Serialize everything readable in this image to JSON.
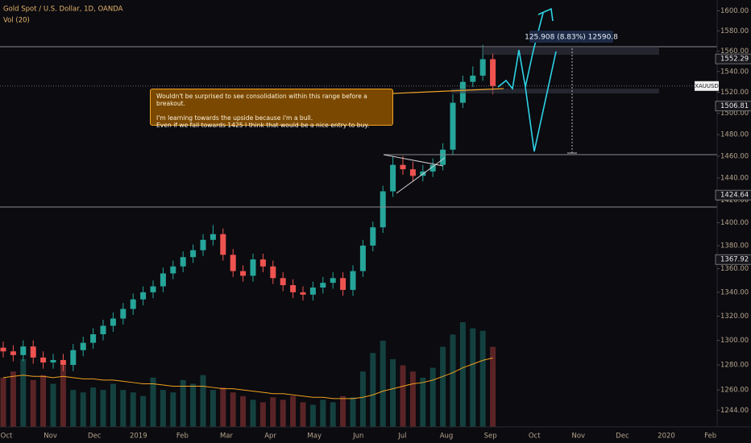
{
  "chart_data": {
    "type": "candlestick",
    "title": "Gold Spot / U.S. Dollar, 1D, OANDA",
    "subtitle": "Vol (20)",
    "scale": "log",
    "up_color": "#26a69a",
    "down_color": "#ef5350",
    "ma_color": "#f0a020",
    "ylim": [
      1231,
      1611
    ],
    "yticks": [
      {
        "value": 1600,
        "label": "1600.00"
      },
      {
        "value": 1580,
        "label": "1580.00"
      },
      {
        "value": 1560,
        "label": "1560.00"
      },
      {
        "value": 1540,
        "label": "1540.00"
      },
      {
        "value": 1520,
        "label": "1520.00"
      },
      {
        "value": 1500,
        "label": "1500.00"
      },
      {
        "value": 1480,
        "label": "1480.00"
      },
      {
        "value": 1460,
        "label": "1460.00"
      },
      {
        "value": 1440,
        "label": "1440.00"
      },
      {
        "value": 1420,
        "label": "1420.00"
      },
      {
        "value": 1400,
        "label": "1400.00"
      },
      {
        "value": 1380,
        "label": "1380.00"
      },
      {
        "value": 1360,
        "label": "1360.00"
      },
      {
        "value": 1340,
        "label": "1340.00"
      },
      {
        "value": 1320,
        "label": "1320.00"
      },
      {
        "value": 1300,
        "label": "1300.00"
      },
      {
        "value": 1280,
        "label": "1280.00"
      },
      {
        "value": 1260,
        "label": "1260.00"
      },
      {
        "value": 1244,
        "label": "1244.00"
      }
    ],
    "x_labels": [
      "Oct",
      "Nov",
      "Dec",
      "2019",
      "Feb",
      "Mar",
      "Apr",
      "May",
      "Jun",
      "Jul",
      "Aug",
      "Sep",
      "Oct",
      "Nov",
      "Dec",
      "2020",
      "Feb"
    ],
    "open": [
      1294,
      1291,
      1288,
      1295,
      1286,
      1282,
      1284,
      1280,
      1292,
      1298,
      1305,
      1312,
      1318,
      1326,
      1334,
      1340,
      1345,
      1356,
      1362,
      1370,
      1376,
      1385,
      1390,
      1372,
      1358,
      1354,
      1368,
      1362,
      1352,
      1346,
      1340,
      1338,
      1344,
      1348,
      1352,
      1342,
      1358,
      1380,
      1396,
      1428,
      1452,
      1448,
      1442,
      1446,
      1452,
      1466,
      1510,
      1530,
      1536,
      1552
    ],
    "high": [
      1299,
      1296,
      1300,
      1300,
      1291,
      1289,
      1289,
      1297,
      1303,
      1310,
      1317,
      1323,
      1331,
      1339,
      1345,
      1350,
      1361,
      1367,
      1375,
      1381,
      1390,
      1398,
      1395,
      1377,
      1363,
      1373,
      1373,
      1367,
      1357,
      1351,
      1345,
      1349,
      1353,
      1357,
      1357,
      1363,
      1385,
      1401,
      1433,
      1460,
      1460,
      1455,
      1452,
      1458,
      1472,
      1518,
      1536,
      1545,
      1566,
      1558
    ],
    "low": [
      1286,
      1283,
      1283,
      1281,
      1277,
      1277,
      1275,
      1275,
      1287,
      1293,
      1300,
      1307,
      1313,
      1321,
      1329,
      1335,
      1340,
      1351,
      1357,
      1365,
      1371,
      1380,
      1367,
      1353,
      1349,
      1349,
      1357,
      1347,
      1341,
      1335,
      1333,
      1333,
      1339,
      1343,
      1337,
      1337,
      1353,
      1375,
      1391,
      1423,
      1443,
      1437,
      1437,
      1441,
      1447,
      1461,
      1505,
      1525,
      1531,
      1518
    ],
    "close": [
      1291,
      1288,
      1295,
      1286,
      1282,
      1284,
      1280,
      1292,
      1298,
      1305,
      1312,
      1318,
      1326,
      1334,
      1340,
      1345,
      1356,
      1362,
      1370,
      1376,
      1385,
      1390,
      1372,
      1358,
      1354,
      1368,
      1362,
      1352,
      1346,
      1340,
      1338,
      1344,
      1348,
      1352,
      1342,
      1358,
      1380,
      1396,
      1428,
      1452,
      1448,
      1442,
      1446,
      1452,
      1466,
      1510,
      1530,
      1536,
      1552,
      1526
    ],
    "volume": [
      40,
      45,
      55,
      38,
      42,
      35,
      50,
      30,
      28,
      32,
      30,
      35,
      30,
      28,
      25,
      40,
      30,
      28,
      38,
      35,
      42,
      30,
      32,
      28,
      25,
      22,
      20,
      24,
      22,
      25,
      20,
      18,
      22,
      20,
      25,
      24,
      45,
      60,
      70,
      55,
      50,
      45,
      40,
      48,
      65,
      75,
      85,
      80,
      78,
      65
    ],
    "volume_ma": [
      40,
      41,
      42,
      41,
      41,
      40,
      41,
      40,
      39,
      39,
      38,
      38,
      37,
      36,
      35,
      35,
      34,
      33,
      33,
      33,
      33,
      32,
      31,
      31,
      30,
      29,
      28,
      27,
      27,
      26,
      25,
      24,
      24,
      23,
      23,
      23,
      24,
      26,
      29,
      31,
      33,
      35,
      36,
      38,
      41,
      44,
      48,
      51,
      54,
      56
    ],
    "symbol_tag": "XAUUSD",
    "price_tags": [
      1552.29,
      1506.81,
      1424.64,
      1367.92
    ],
    "measure_label": "125.908 (8.83%) 12590.8",
    "annotation": [
      "Wouldn't be surprised to see consolidation within this range before a breakout.",
      "I'm learning towards the upside because i'm a bull.",
      "Even if we fall towards 1425 I think that would be a nice entry to buy."
    ]
  }
}
